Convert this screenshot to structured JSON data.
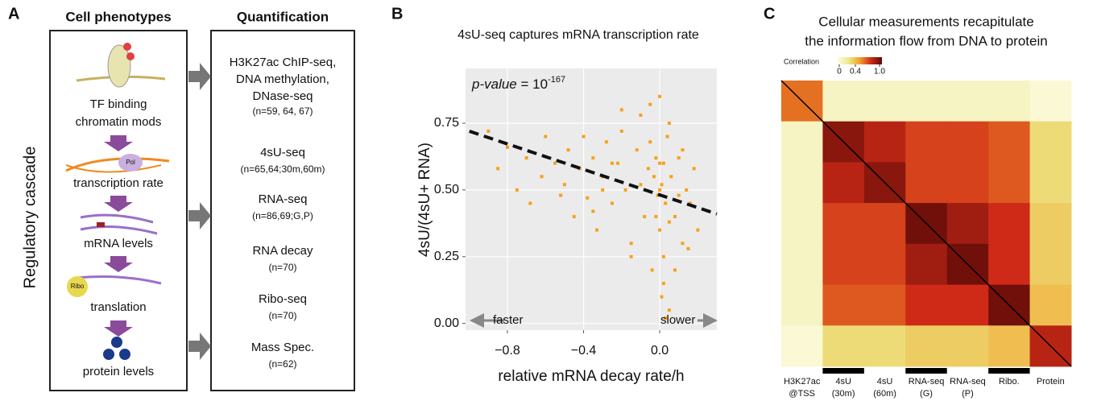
{
  "panel_a": {
    "letter": "A",
    "side_label": "Regulatory cascade",
    "phenotypes": {
      "title": "Cell phenotypes",
      "items": [
        [
          "TF binding",
          "chromatin mods"
        ],
        [
          "transcription rate"
        ],
        [
          "mRNA levels"
        ],
        [
          "translation"
        ],
        [
          "protein levels"
        ]
      ],
      "icon_labels": [
        "Pol",
        "Ribo"
      ]
    },
    "quantification": {
      "title": "Quantification",
      "items": [
        [
          "H3K27ac ChIP-seq,",
          "DNA methylation,",
          "DNase-seq",
          "(n=59, 64, 67)"
        ],
        [
          "4sU-seq",
          "(n=65,64;30m,60m)"
        ],
        [
          "RNA-seq",
          "(n=86,69;G,P)"
        ],
        [
          "RNA decay",
          "(n=70)"
        ],
        [
          "Ribo-seq",
          "(n=70)"
        ],
        [
          "Mass Spec.",
          "(n=62)"
        ]
      ]
    }
  },
  "chart_data": [
    {
      "type": "scatter",
      "letter": "B",
      "title": "4sU-seq captures mRNA transcription rate",
      "x_label": "relative mRNA decay rate/h",
      "y_label": "4sU/(4sU+ RNA)",
      "annotation": {
        "label": "p-value",
        "equals": "= 10",
        "exponent": "-167"
      },
      "direction_labels": [
        "faster",
        "slower"
      ],
      "color": "#f7a11a",
      "fit_color": "#111111",
      "fit_line": {
        "x": [
          -1.0,
          0.3
        ],
        "y": [
          0.72,
          0.41
        ]
      },
      "xlim": [
        -1.02,
        0.3
      ],
      "ylim": [
        -0.025,
        0.955
      ],
      "xticks": [
        {
          "value": -0.8,
          "label": "−0.8"
        },
        {
          "value": -0.4,
          "label": "−0.4"
        },
        {
          "value": 0,
          "label": "0.0"
        }
      ],
      "yticks": [
        {
          "value": 0,
          "label": "0.00"
        },
        {
          "value": 0.25,
          "label": "0.25"
        },
        {
          "value": 0.5,
          "label": "0.50"
        },
        {
          "value": 0.75,
          "label": "0.75"
        }
      ],
      "grid": true,
      "x": [
        -0.9,
        -0.85,
        -0.8,
        -0.75,
        -0.7,
        -0.68,
        -0.62,
        -0.6,
        -0.55,
        -0.52,
        -0.5,
        -0.48,
        -0.45,
        -0.42,
        -0.4,
        -0.38,
        -0.35,
        -0.33,
        -0.3,
        -0.28,
        -0.25,
        -0.22,
        -0.2,
        -0.18,
        -0.15,
        -0.12,
        -0.1,
        -0.08,
        -0.06,
        -0.05,
        -0.04,
        -0.03,
        -0.02,
        -0.01,
        0,
        0,
        0,
        0.01,
        0.01,
        0.02,
        0.02,
        0.03,
        0.04,
        0.05,
        0.06,
        0.08,
        0.1,
        0.12,
        0.14,
        0.16,
        0.18,
        0.2,
        -0.1,
        -0.05,
        0,
        0.05,
        0.1,
        -0.15,
        -0.2,
        0.02,
        0.03,
        -0.02,
        0.08,
        0.12,
        0.15,
        -0.3,
        -0.25,
        -0.35,
        0,
        0.05
      ],
      "y": [
        0.72,
        0.58,
        0.66,
        0.5,
        0.62,
        0.45,
        0.55,
        0.7,
        0.6,
        0.48,
        0.52,
        0.65,
        0.4,
        0.58,
        0.7,
        0.47,
        0.62,
        0.35,
        0.55,
        0.68,
        0.45,
        0.6,
        0.72,
        0.5,
        0.3,
        0.65,
        0.78,
        0.4,
        0.58,
        0.82,
        0.2,
        0.55,
        0.62,
        0.48,
        0.5,
        0.35,
        0.85,
        0.1,
        0.52,
        0.6,
        0.25,
        0.45,
        0.7,
        0.05,
        0.55,
        0.4,
        0.62,
        0.3,
        0.5,
        0.45,
        0.58,
        0.35,
        0.52,
        0.68,
        0.6,
        0.75,
        0.48,
        0.25,
        0.8,
        0.15,
        0.02,
        0.4,
        0.2,
        0.65,
        0.28,
        0.5,
        0.6,
        0.42,
        0.48,
        0.38
      ]
    },
    {
      "type": "heatmap",
      "letter": "C",
      "title": [
        "Cellular measurements recapitulate",
        "the information flow from DNA to protein"
      ],
      "colorbar_label": "Correlation",
      "colorbar_ticks": [
        0,
        0.4,
        {
          "value": 1,
          "label": "1.0"
        }
      ],
      "colormap": [
        "#fdfbe8",
        "#ecea8a",
        "#f2a02a",
        "#cf2a17",
        "#5a0a08"
      ],
      "labels": [
        [
          "H3K27ac",
          "@TSS"
        ],
        [
          "4sU",
          "(30m)"
        ],
        [
          "4sU",
          "(60m)"
        ],
        [
          "RNA-seq",
          "(G)"
        ],
        [
          "RNA-seq",
          "(P)"
        ],
        [
          "Ribo."
        ],
        [
          "Protein"
        ]
      ],
      "highlight_groups": [
        1,
        3,
        5
      ],
      "matrix": [
        [
          0.6,
          0.1,
          0.1,
          0.1,
          0.1,
          0.1,
          0.05
        ],
        [
          0.1,
          0.9,
          0.8,
          0.7,
          0.7,
          0.65,
          0.3
        ],
        [
          0.1,
          0.8,
          0.9,
          0.7,
          0.7,
          0.65,
          0.3
        ],
        [
          0.1,
          0.7,
          0.7,
          0.95,
          0.85,
          0.75,
          0.35
        ],
        [
          0.1,
          0.7,
          0.7,
          0.85,
          0.95,
          0.75,
          0.35
        ],
        [
          0.1,
          0.65,
          0.65,
          0.75,
          0.75,
          0.95,
          0.4
        ],
        [
          0.05,
          0.3,
          0.3,
          0.35,
          0.35,
          0.4,
          0.8
        ]
      ]
    }
  ]
}
